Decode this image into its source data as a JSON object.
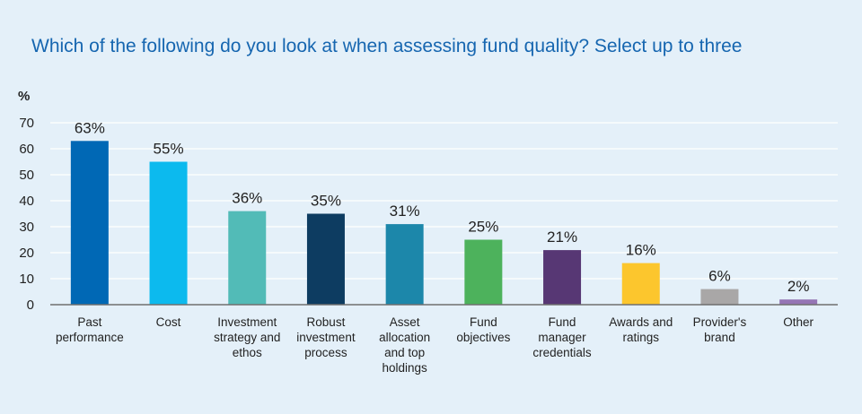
{
  "chart_data": {
    "type": "bar",
    "title": "Which of the following do you look at when assessing fund quality? Select up to three",
    "ylabel": "%",
    "xlabel": "",
    "ylim": [
      0,
      70
    ],
    "yticks": [
      0,
      10,
      20,
      30,
      40,
      50,
      60,
      70
    ],
    "grid": true,
    "categories": [
      [
        "Past",
        "performance"
      ],
      [
        "Cost"
      ],
      [
        "Investment",
        "strategy and",
        "ethos"
      ],
      [
        "Robust",
        "investment",
        "process"
      ],
      [
        "Asset",
        "allocation",
        "and top",
        "holdings"
      ],
      [
        "Fund",
        "objectives"
      ],
      [
        "Fund",
        "manager",
        "credentials"
      ],
      [
        "Awards and",
        "ratings"
      ],
      [
        "Provider's",
        "brand"
      ],
      [
        "Other"
      ]
    ],
    "values": [
      63,
      55,
      36,
      35,
      31,
      25,
      21,
      16,
      6,
      2
    ],
    "data_labels": [
      "63%",
      "55%",
      "36%",
      "35%",
      "31%",
      "25%",
      "21%",
      "16%",
      "6%",
      "2%"
    ],
    "colors": [
      "#0068b5",
      "#0cbaee",
      "#52bbb7",
      "#0d3c61",
      "#1c87aa",
      "#4db25c",
      "#573774",
      "#fcc62d",
      "#a9a7a7",
      "#9575b5"
    ],
    "grid_color": "#ffffff",
    "axis_color": "#6f6f6f"
  }
}
